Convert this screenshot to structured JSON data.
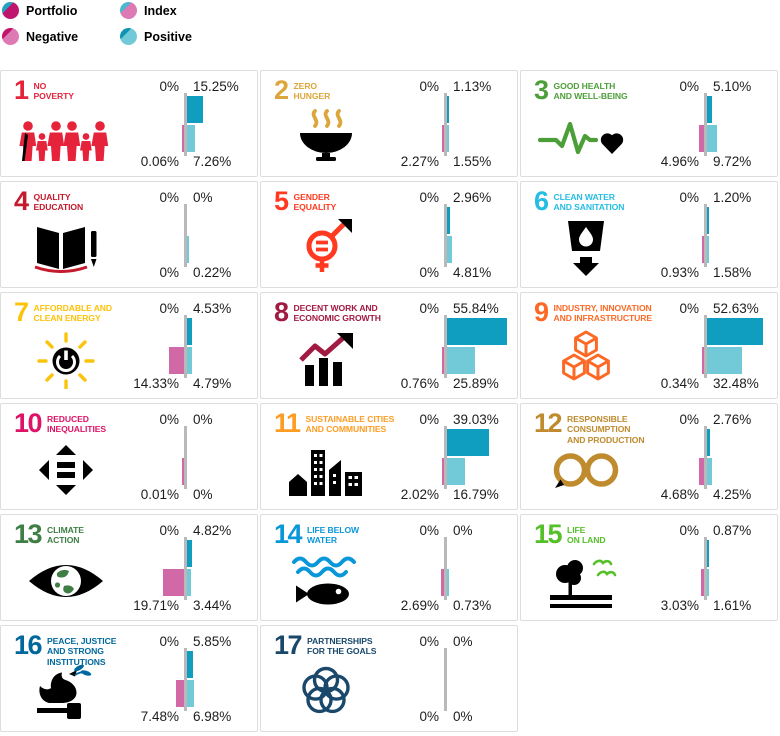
{
  "legend": {
    "items": [
      {
        "label": "Portfolio",
        "icon": "portfolio-swatch-icon",
        "wedge_color": "#23a2c2",
        "main_color": "#c0156d"
      },
      {
        "label": "Index",
        "icon": "index-swatch-icon",
        "wedge_color": "#4db6cf",
        "main_color": "#dd79b3"
      },
      {
        "label": "Negative",
        "icon": "negative-swatch-icon",
        "wedge_color": "#c0156d",
        "main_color": "#dd79b3"
      },
      {
        "label": "Positive",
        "icon": "positive-swatch-icon",
        "wedge_color": "#0f94b5",
        "main_color": "#72c9d8"
      }
    ]
  },
  "bar_colors": {
    "portfolio_negative": "#c0156d",
    "portfolio_positive": "#0f9ebf",
    "index_negative": "#d069a6",
    "index_positive": "#72c9d8"
  },
  "axis_color": "#b9b9b9",
  "chart_data": {
    "type": "bar",
    "orientation": "horizontal",
    "layout": "small-multiples, one diverging bar pair per SDG; negative values extend left of axis, positive right",
    "units": "%",
    "categories": [
      "No Poverty",
      "Zero Hunger",
      "Good Health and Well-Being",
      "Quality Education",
      "Gender Equality",
      "Clean Water and Sanitation",
      "Affordable and Clean Energy",
      "Decent Work and Economic Growth",
      "Industry, Innovation and Infrastructure",
      "Reduced Inequalities",
      "Sustainable Cities and Communities",
      "Responsible Consumption and Production",
      "Climate Action",
      "Life Below Water",
      "Life on Land",
      "Peace, Justice and Strong Institutions",
      "Partnerships for the Goals"
    ],
    "series": [
      {
        "name": "Portfolio negative",
        "values": [
          0,
          0,
          0,
          0,
          0,
          0,
          0,
          0,
          0,
          0,
          0,
          0,
          0,
          0,
          0,
          0,
          0
        ]
      },
      {
        "name": "Portfolio positive",
        "values": [
          15.25,
          1.13,
          5.1,
          0,
          2.96,
          1.2,
          4.53,
          55.84,
          52.63,
          0,
          39.03,
          2.76,
          4.82,
          0,
          0.87,
          5.85,
          0
        ]
      },
      {
        "name": "Index negative",
        "values": [
          0.06,
          2.27,
          4.96,
          0,
          0,
          0.93,
          14.33,
          0.76,
          0.34,
          0.01,
          2.02,
          4.68,
          19.71,
          2.69,
          3.03,
          7.48,
          0
        ]
      },
      {
        "name": "Index positive",
        "values": [
          7.26,
          1.55,
          9.72,
          0.22,
          4.81,
          1.58,
          4.79,
          25.89,
          32.48,
          0,
          16.79,
          4.25,
          3.44,
          0.73,
          1.61,
          6.98,
          0
        ]
      }
    ]
  },
  "sdgs": [
    {
      "number": "1",
      "title_lines": [
        "NO",
        "POVERTY"
      ],
      "color": "#e5243b",
      "icon": "no-poverty-icon"
    },
    {
      "number": "2",
      "title_lines": [
        "ZERO",
        "HUNGER"
      ],
      "color": "#dda63a",
      "icon": "zero-hunger-icon"
    },
    {
      "number": "3",
      "title_lines": [
        "GOOD HEALTH",
        "AND WELL-BEING"
      ],
      "color": "#4c9f38",
      "icon": "good-health-icon"
    },
    {
      "number": "4",
      "title_lines": [
        "QUALITY",
        "EDUCATION"
      ],
      "color": "#c5192d",
      "icon": "quality-education-icon"
    },
    {
      "number": "5",
      "title_lines": [
        "GENDER",
        "EQUALITY"
      ],
      "color": "#ff3a21",
      "icon": "gender-equality-icon"
    },
    {
      "number": "6",
      "title_lines": [
        "CLEAN WATER",
        "AND SANITATION"
      ],
      "color": "#26bde2",
      "icon": "clean-water-icon"
    },
    {
      "number": "7",
      "title_lines": [
        "AFFORDABLE AND",
        "CLEAN ENERGY"
      ],
      "color": "#fcc30b",
      "icon": "clean-energy-icon"
    },
    {
      "number": "8",
      "title_lines": [
        "DECENT WORK AND",
        "ECONOMIC GROWTH"
      ],
      "color": "#a21942",
      "icon": "decent-work-icon"
    },
    {
      "number": "9",
      "title_lines": [
        "INDUSTRY, INNOVATION",
        "AND INFRASTRUCTURE"
      ],
      "color": "#fd6925",
      "icon": "industry-icon"
    },
    {
      "number": "10",
      "title_lines": [
        "REDUCED",
        "INEQUALITIES"
      ],
      "color": "#dd1367",
      "icon": "reduced-inequalities-icon"
    },
    {
      "number": "11",
      "title_lines": [
        "SUSTAINABLE CITIES",
        "AND COMMUNITIES"
      ],
      "color": "#fd9d24",
      "icon": "sustainable-cities-icon"
    },
    {
      "number": "12",
      "title_lines": [
        "RESPONSIBLE",
        "CONSUMPTION",
        "AND PRODUCTION"
      ],
      "color": "#bf8b2e",
      "icon": "responsible-consumption-icon"
    },
    {
      "number": "13",
      "title_lines": [
        "CLIMATE",
        "ACTION"
      ],
      "color": "#3f7e44",
      "icon": "climate-action-icon"
    },
    {
      "number": "14",
      "title_lines": [
        "LIFE BELOW",
        "WATER"
      ],
      "color": "#0a97d9",
      "icon": "life-below-water-icon"
    },
    {
      "number": "15",
      "title_lines": [
        "LIFE",
        "ON LAND"
      ],
      "color": "#56c02b",
      "icon": "life-on-land-icon"
    },
    {
      "number": "16",
      "title_lines": [
        "PEACE, JUSTICE",
        "AND STRONG",
        "INSTITUTIONS"
      ],
      "color": "#00689d",
      "icon": "peace-justice-icon"
    },
    {
      "number": "17",
      "title_lines": [
        "PARTNERSHIPS",
        "FOR THE GOALS"
      ],
      "color": "#19486a",
      "icon": "partnerships-icon"
    }
  ]
}
